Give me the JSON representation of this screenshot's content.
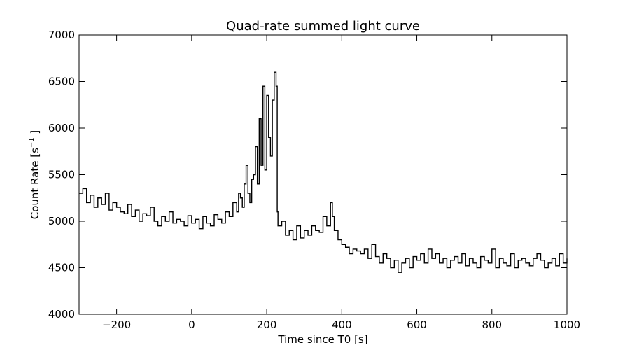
{
  "chart_data": {
    "type": "line",
    "title": "Quad-rate summed light curve",
    "xlabel": "Time since T0 [s]",
    "ylabel": {
      "prefix": "Count Rate [s",
      "exponent": "−1",
      "suffix": " ]"
    },
    "xlim": [
      -300,
      1000
    ],
    "ylim": [
      4000,
      7000
    ],
    "xticks": [
      -200,
      0,
      200,
      400,
      600,
      800,
      1000
    ],
    "xtick_labels": [
      "−200",
      "0",
      "200",
      "400",
      "600",
      "800",
      "1000"
    ],
    "yticks": [
      4000,
      4500,
      5000,
      5500,
      6000,
      6500,
      7000
    ],
    "ytick_labels": [
      "4000",
      "4500",
      "5000",
      "5500",
      "6000",
      "6500",
      "7000"
    ],
    "grid": false,
    "legend": "none",
    "line_color": "#000000",
    "series": [
      {
        "x": [
          -300,
          -290,
          -280,
          -270,
          -260,
          -250,
          -240,
          -230,
          -220,
          -210,
          -200,
          -190,
          -180,
          -170,
          -160,
          -150,
          -140,
          -130,
          -120,
          -110,
          -100,
          -90,
          -80,
          -70,
          -60,
          -50,
          -40,
          -30,
          -20,
          -10,
          0,
          10,
          20,
          30,
          40,
          50,
          60,
          70,
          80,
          90,
          100,
          110,
          120,
          125,
          130,
          135,
          140,
          145,
          150,
          155,
          160,
          165,
          170,
          175,
          180,
          185,
          190,
          195,
          200,
          205,
          210,
          215,
          220,
          225,
          228,
          230,
          240,
          250,
          260,
          270,
          280,
          290,
          300,
          310,
          320,
          330,
          340,
          350,
          360,
          370,
          375,
          380,
          390,
          400,
          410,
          420,
          430,
          440,
          450,
          460,
          470,
          480,
          490,
          500,
          510,
          520,
          530,
          540,
          550,
          560,
          570,
          580,
          590,
          600,
          610,
          620,
          630,
          640,
          650,
          660,
          670,
          680,
          690,
          700,
          710,
          720,
          730,
          740,
          750,
          760,
          770,
          780,
          790,
          800,
          810,
          820,
          830,
          840,
          850,
          860,
          870,
          880,
          890,
          900,
          910,
          920,
          930,
          940,
          950,
          960,
          970,
          980,
          990,
          1000
        ],
        "y": [
          5300,
          5350,
          5200,
          5280,
          5150,
          5250,
          5180,
          5300,
          5120,
          5200,
          5150,
          5100,
          5080,
          5180,
          5050,
          5120,
          5000,
          5080,
          5060,
          5150,
          5000,
          4950,
          5050,
          5000,
          5100,
          4980,
          5020,
          5000,
          4950,
          5060,
          4980,
          5020,
          4920,
          5050,
          4980,
          4950,
          5070,
          5020,
          4980,
          5100,
          5050,
          5200,
          5100,
          5300,
          5250,
          5150,
          5400,
          5600,
          5300,
          5200,
          5450,
          5500,
          5800,
          5400,
          6100,
          5600,
          6450,
          5550,
          6350,
          5900,
          5700,
          6300,
          6600,
          6450,
          5100,
          4950,
          5000,
          4850,
          4900,
          4800,
          4950,
          4820,
          4900,
          4850,
          4950,
          4900,
          4880,
          5050,
          4950,
          5200,
          5050,
          4900,
          4800,
          4750,
          4720,
          4650,
          4700,
          4680,
          4650,
          4700,
          4600,
          4750,
          4620,
          4550,
          4650,
          4600,
          4500,
          4580,
          4450,
          4550,
          4600,
          4500,
          4620,
          4580,
          4650,
          4550,
          4700,
          4600,
          4650,
          4550,
          4600,
          4500,
          4580,
          4620,
          4550,
          4650,
          4520,
          4600,
          4550,
          4500,
          4620,
          4580,
          4550,
          4700,
          4500,
          4600,
          4550,
          4520,
          4650,
          4500,
          4580,
          4600,
          4550,
          4520,
          4600,
          4650,
          4580,
          4500,
          4550,
          4600,
          4520,
          4650,
          4550,
          4600
        ]
      }
    ]
  }
}
